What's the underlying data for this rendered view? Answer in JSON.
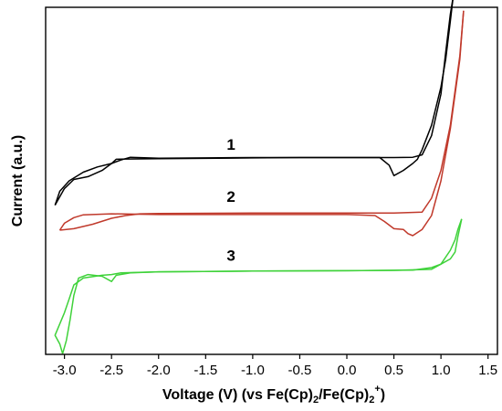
{
  "chart_data": {
    "type": "line",
    "title": "",
    "xlabel": "Voltage (V) (vs Fe(Cp)",
    "xlabel_sub1": "2",
    "xlabel_mid": "/Fe(Cp)",
    "xlabel_sub2": "2",
    "xlabel_sup": "+",
    "xlabel_close": ")",
    "ylabel": "Current (a.u.)",
    "xlim": [
      -3.2,
      1.6
    ],
    "ylim": [
      0,
      10
    ],
    "x_ticks": [
      -3.0,
      -2.5,
      -2.0,
      -1.5,
      -1.0,
      -0.5,
      0.0,
      0.5,
      1.0,
      1.5
    ],
    "x_tick_labels": [
      "-3.0",
      "-2.5",
      "-2.0",
      "-1.5",
      "-1.0",
      "-0.5",
      "0.0",
      "0.5",
      "1.0",
      "1.5"
    ],
    "y_ticks_shown": false,
    "grid": false,
    "legend": "none",
    "series": [
      {
        "label": "1",
        "color": "#000000",
        "label_at": [
          -1.23,
          5.9
        ],
        "upper": [
          [
            -3.1,
            4.3
          ],
          [
            -3.0,
            4.78
          ],
          [
            -2.9,
            5.04
          ],
          [
            -2.75,
            5.12
          ],
          [
            -2.6,
            5.3
          ],
          [
            -2.5,
            5.5
          ],
          [
            -2.45,
            5.62
          ],
          [
            -2.35,
            5.63
          ],
          [
            -2.0,
            5.64
          ],
          [
            -1.0,
            5.66
          ],
          [
            -0.5,
            5.67
          ],
          [
            0.0,
            5.67
          ],
          [
            0.35,
            5.67
          ],
          [
            0.45,
            5.45
          ],
          [
            0.5,
            5.15
          ],
          [
            0.6,
            5.3
          ],
          [
            0.7,
            5.5
          ],
          [
            0.75,
            5.62
          ],
          [
            0.8,
            5.9
          ],
          [
            0.9,
            6.6
          ],
          [
            1.0,
            7.7
          ],
          [
            1.05,
            8.5
          ],
          [
            1.1,
            9.6
          ],
          [
            1.13,
            10.3
          ]
        ],
        "lower": [
          [
            -3.1,
            4.3
          ],
          [
            -3.05,
            4.7
          ],
          [
            -2.95,
            5.0
          ],
          [
            -2.8,
            5.25
          ],
          [
            -2.65,
            5.4
          ],
          [
            -2.5,
            5.5
          ],
          [
            -2.4,
            5.6
          ],
          [
            -2.3,
            5.68
          ],
          [
            -2.0,
            5.65
          ],
          [
            -1.5,
            5.66
          ],
          [
            -1.0,
            5.67
          ],
          [
            -0.5,
            5.67
          ],
          [
            0.0,
            5.67
          ],
          [
            0.5,
            5.67
          ],
          [
            0.7,
            5.68
          ],
          [
            0.8,
            5.75
          ],
          [
            0.9,
            6.3
          ],
          [
            1.0,
            7.5
          ],
          [
            1.05,
            8.7
          ],
          [
            1.1,
            9.8
          ],
          [
            1.13,
            10.3
          ]
        ]
      },
      {
        "label": "2",
        "color": "#c0392b",
        "label_at": [
          -1.23,
          4.4
        ],
        "upper": [
          [
            -3.05,
            3.58
          ],
          [
            -2.9,
            3.62
          ],
          [
            -2.7,
            3.75
          ],
          [
            -2.5,
            3.92
          ],
          [
            -2.35,
            4.0
          ],
          [
            -2.2,
            4.05
          ],
          [
            -2.0,
            4.06
          ],
          [
            -1.0,
            4.07
          ],
          [
            0.0,
            4.07
          ],
          [
            0.5,
            4.07
          ],
          [
            0.8,
            4.1
          ],
          [
            0.9,
            4.5
          ],
          [
            1.0,
            5.3
          ],
          [
            1.1,
            6.6
          ],
          [
            1.2,
            8.6
          ],
          [
            1.24,
            9.9
          ]
        ],
        "lower": [
          [
            -3.05,
            3.58
          ],
          [
            -3.0,
            3.78
          ],
          [
            -2.9,
            3.94
          ],
          [
            -2.8,
            4.02
          ],
          [
            -2.5,
            4.05
          ],
          [
            -2.0,
            4.03
          ],
          [
            -1.0,
            4.03
          ],
          [
            0.0,
            4.03
          ],
          [
            0.3,
            4.0
          ],
          [
            0.4,
            3.83
          ],
          [
            0.5,
            3.62
          ],
          [
            0.6,
            3.6
          ],
          [
            0.65,
            3.48
          ],
          [
            0.7,
            3.42
          ],
          [
            0.8,
            3.6
          ],
          [
            0.9,
            4.0
          ],
          [
            1.0,
            5.0
          ],
          [
            1.1,
            6.5
          ],
          [
            1.2,
            8.5
          ],
          [
            1.24,
            9.9
          ]
        ]
      },
      {
        "label": "3",
        "color": "#3fd23a",
        "label_at": [
          -1.23,
          2.7
        ],
        "upper": [
          [
            -3.02,
            0.02
          ],
          [
            -3.05,
            0.3
          ],
          [
            -3.1,
            0.55
          ],
          [
            -3.0,
            1.2
          ],
          [
            -2.95,
            1.6
          ],
          [
            -2.9,
            2.0
          ],
          [
            -2.8,
            2.2
          ],
          [
            -2.6,
            2.28
          ],
          [
            -2.5,
            2.3
          ],
          [
            -2.4,
            2.35
          ],
          [
            -2.0,
            2.38
          ],
          [
            -1.0,
            2.4
          ],
          [
            0.0,
            2.41
          ],
          [
            0.5,
            2.42
          ],
          [
            0.9,
            2.45
          ],
          [
            1.0,
            2.6
          ],
          [
            1.1,
            3.0
          ],
          [
            1.15,
            3.3
          ],
          [
            1.18,
            3.6
          ],
          [
            1.22,
            3.9
          ]
        ],
        "lower": [
          [
            -3.02,
            0.02
          ],
          [
            -2.98,
            0.4
          ],
          [
            -2.94,
            1.0
          ],
          [
            -2.9,
            1.7
          ],
          [
            -2.85,
            2.2
          ],
          [
            -2.75,
            2.3
          ],
          [
            -2.6,
            2.25
          ],
          [
            -2.5,
            2.1
          ],
          [
            -2.45,
            2.28
          ],
          [
            -2.3,
            2.35
          ],
          [
            -2.0,
            2.38
          ],
          [
            -1.0,
            2.4
          ],
          [
            0.0,
            2.41
          ],
          [
            0.7,
            2.43
          ],
          [
            0.9,
            2.5
          ],
          [
            1.0,
            2.6
          ],
          [
            1.1,
            2.75
          ],
          [
            1.15,
            2.95
          ],
          [
            1.18,
            3.4
          ],
          [
            1.22,
            3.9
          ]
        ]
      }
    ]
  }
}
